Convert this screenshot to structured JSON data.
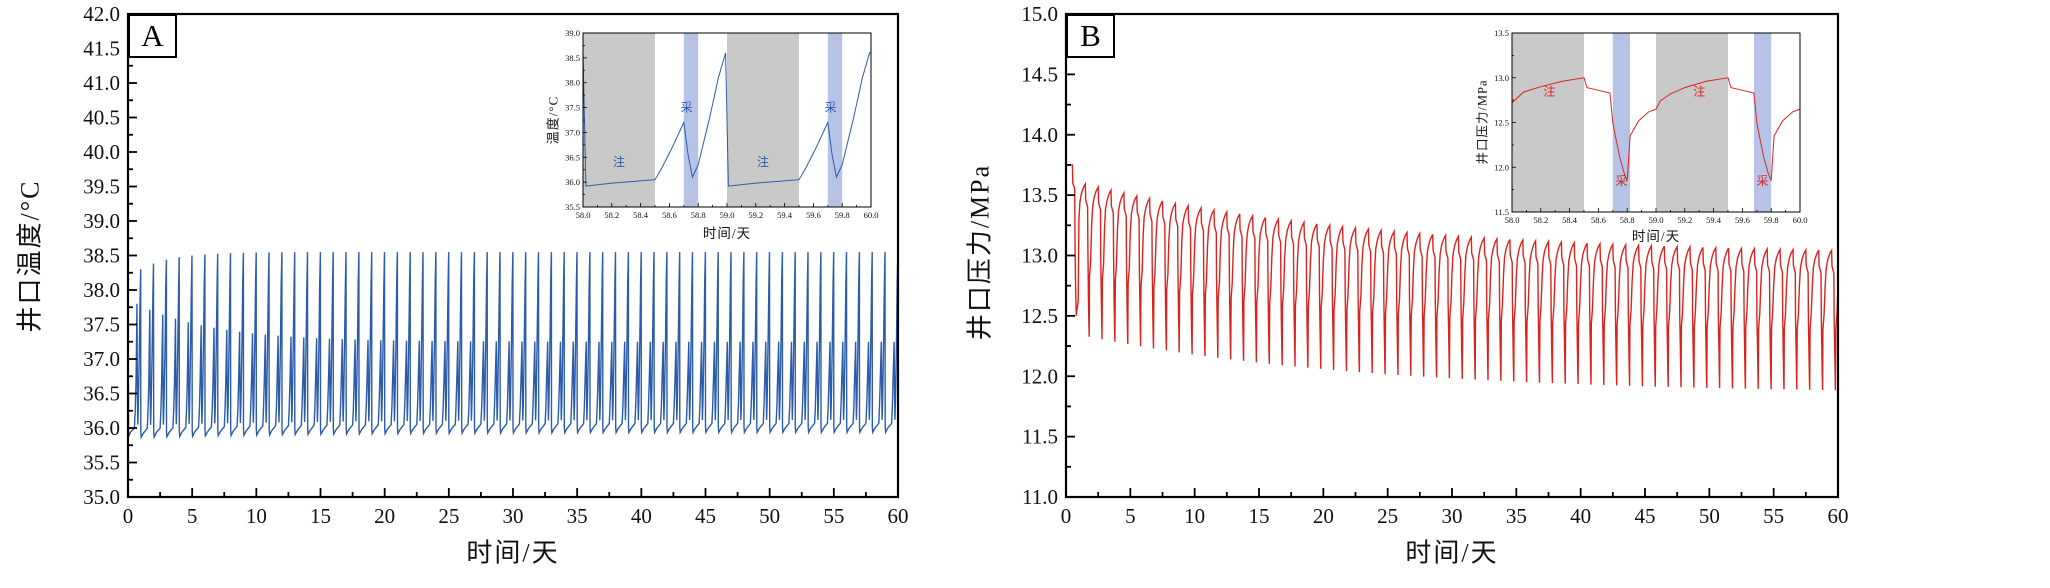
{
  "figure_type": "dual-panel daily injection-production cycle line charts",
  "chart_data": [
    {
      "id": "A",
      "type": "line",
      "panel_label": "A",
      "xlabel": "时间/天",
      "ylabel": "井口温度/°C",
      "xlim": [
        0,
        60
      ],
      "ylim": [
        35.0,
        42.0
      ],
      "xticks": [
        0,
        5,
        10,
        15,
        20,
        25,
        30,
        35,
        40,
        45,
        50,
        55,
        60
      ],
      "yticks": [
        35.0,
        35.5,
        36.0,
        36.5,
        37.0,
        37.5,
        38.0,
        38.5,
        39.0,
        39.5,
        40.0,
        40.5,
        41.0,
        41.5,
        42.0
      ],
      "line_color": "#2b5ba9",
      "description": "Wellhead temperature, one injection-production cycle per day for 60 days; baseline ~36.0, secondary peak ~37.2-37.8, main daily peak ~38.3-38.6",
      "series_model": {
        "cycles": 60,
        "envelopes": {
          "base": {
            "end": 36.02,
            "amp": -0.08,
            "tau": 15
          },
          "sub": {
            "end": 37.25,
            "amp": 0.55,
            "tau": 6
          },
          "peak": {
            "end": 38.55,
            "amp": -0.25,
            "tau": 2.5
          }
        },
        "waveform": [
          [
            0.0,
            "base",
            0
          ],
          [
            0.03,
            "base",
            -0.08
          ],
          [
            0.2,
            "base",
            -0.02
          ],
          [
            0.5,
            "base",
            0.05
          ],
          [
            0.56,
            "base",
            0.3
          ],
          [
            0.62,
            "base",
            0.7
          ],
          [
            0.7,
            "sub",
            0
          ],
          [
            0.73,
            "base",
            0.55
          ],
          [
            0.76,
            "base",
            0.1
          ],
          [
            0.8,
            "base",
            0.35
          ],
          [
            0.88,
            "peak",
            -1.3
          ],
          [
            0.94,
            "peak",
            -0.45
          ],
          [
            0.99,
            "peak",
            0
          ]
        ],
        "day0_override": [
          [
            0.0,
            36.7
          ],
          [
            0.02,
            36.7
          ],
          [
            0.05,
            35.88
          ],
          [
            0.2,
            35.94
          ],
          [
            0.5,
            36.0
          ],
          [
            0.56,
            36.25
          ],
          [
            0.62,
            36.65
          ],
          [
            0.7,
            37.8
          ],
          [
            0.73,
            36.5
          ],
          [
            0.76,
            36.05
          ],
          [
            0.8,
            36.3
          ],
          [
            0.88,
            37.1
          ],
          [
            0.94,
            37.9
          ],
          [
            0.99,
            38.3
          ]
        ],
        "tail": {
          "ref": "base",
          "off": 0
        }
      },
      "inset": {
        "xlabel": "时间/天",
        "ylabel": "温度/°C",
        "xlim": [
          58,
          60
        ],
        "ylim": [
          35.5,
          39.0
        ],
        "xticks": [
          58.0,
          58.2,
          58.4,
          58.6,
          58.8,
          59.0,
          59.2,
          59.4,
          59.6,
          59.8,
          60.0
        ],
        "yticks": [
          35.5,
          36.0,
          36.5,
          37.0,
          37.5,
          38.0,
          38.5,
          39.0
        ],
        "regions": [
          {
            "type": "injection",
            "label": "注",
            "x0": 58.0,
            "x1": 58.5,
            "fill": "#c9c9c9",
            "label_pos": [
              58.25,
              36.32
            ]
          },
          {
            "type": "production",
            "label": "采",
            "x0": 58.7,
            "x1": 58.8,
            "fill": "#b7c3e6",
            "label_pos": [
              58.72,
              37.42
            ]
          },
          {
            "type": "injection",
            "label": "注",
            "x0": 59.0,
            "x1": 59.5,
            "fill": "#c9c9c9",
            "label_pos": [
              59.25,
              36.32
            ]
          },
          {
            "type": "production",
            "label": "采",
            "x0": 59.7,
            "x1": 59.8,
            "fill": "#b7c3e6",
            "label_pos": [
              59.72,
              37.42
            ]
          }
        ],
        "points": [
          [
            58.0,
            38.6
          ],
          [
            58.02,
            35.92
          ],
          [
            58.2,
            35.98
          ],
          [
            58.5,
            36.05
          ],
          [
            58.55,
            36.3
          ],
          [
            58.62,
            36.7
          ],
          [
            58.7,
            37.2
          ],
          [
            58.73,
            36.55
          ],
          [
            58.76,
            36.1
          ],
          [
            58.8,
            36.35
          ],
          [
            58.88,
            37.3
          ],
          [
            58.94,
            38.1
          ],
          [
            58.99,
            38.6
          ],
          [
            59.01,
            35.92
          ],
          [
            59.2,
            35.98
          ],
          [
            59.5,
            36.05
          ],
          [
            59.55,
            36.3
          ],
          [
            59.62,
            36.7
          ],
          [
            59.7,
            37.2
          ],
          [
            59.73,
            36.55
          ],
          [
            59.76,
            36.1
          ],
          [
            59.8,
            36.35
          ],
          [
            59.88,
            37.3
          ],
          [
            59.94,
            38.1
          ],
          [
            59.99,
            38.6
          ],
          [
            60.0,
            38.6
          ]
        ]
      }
    },
    {
      "id": "B",
      "type": "line",
      "panel_label": "B",
      "xlabel": "时间/天",
      "ylabel": "井口压力/MPa",
      "xlim": [
        0,
        60
      ],
      "ylim": [
        11.0,
        15.0
      ],
      "xticks": [
        0,
        5,
        10,
        15,
        20,
        25,
        30,
        35,
        40,
        45,
        50,
        55,
        60
      ],
      "yticks": [
        11.0,
        11.5,
        12.0,
        12.5,
        13.0,
        13.5,
        14.0,
        14.5,
        15.0
      ],
      "line_color": "#d9231f",
      "description": "Wellhead pressure, one injection-production cycle per day for 60 days; initial plateau 13.75 MPa, daily peaks decay 13.6->13.0, daily minima decay 12.4->11.9",
      "series_model": {
        "cycles": 60,
        "envelopes": {
          "peak": {
            "end": 13.0,
            "amp": 0.62,
            "tau": 22
          },
          "valley": {
            "end": 11.85,
            "amp": 0.5,
            "tau": 22
          }
        },
        "waveform": [
          [
            0.0,
            "peak",
            -0.3
          ],
          [
            0.08,
            "peak",
            -0.15
          ],
          [
            0.2,
            "peak",
            -0.08
          ],
          [
            0.35,
            "peak",
            -0.03
          ],
          [
            0.5,
            "peak",
            0
          ],
          [
            0.53,
            "peak",
            -0.13
          ],
          [
            0.68,
            "peak",
            -0.19
          ],
          [
            0.7,
            "peak",
            -0.55
          ],
          [
            0.74,
            "valley",
            0.35
          ],
          [
            0.78,
            "valley",
            0.1
          ],
          [
            0.8,
            "valley",
            0
          ],
          [
            0.83,
            "valley",
            0.5
          ],
          [
            0.92,
            "valley",
            0.63
          ]
        ],
        "day0_override": [
          [
            0.0,
            13.5
          ],
          [
            0.02,
            13.75
          ],
          [
            0.5,
            13.75
          ],
          [
            0.53,
            13.6
          ],
          [
            0.68,
            13.55
          ],
          [
            0.7,
            13.1
          ],
          [
            0.74,
            12.8
          ],
          [
            0.78,
            12.58
          ],
          [
            0.8,
            12.5
          ],
          [
            0.85,
            12.55
          ],
          [
            0.95,
            12.62
          ]
        ],
        "tail": {
          "ref": "peak",
          "off": -0.3
        }
      },
      "inset": {
        "xlabel": "时间/天",
        "ylabel": "井口压力/MPa",
        "xlim": [
          58,
          60
        ],
        "ylim": [
          11.5,
          13.5
        ],
        "xticks": [
          58.0,
          58.2,
          58.4,
          58.6,
          58.8,
          59.0,
          59.2,
          59.4,
          59.6,
          59.8,
          60.0
        ],
        "yticks": [
          11.5,
          12.0,
          12.5,
          13.0,
          13.5
        ],
        "regions": [
          {
            "type": "injection",
            "label": "注",
            "x0": 58.0,
            "x1": 58.5,
            "fill": "#c9c9c9",
            "label_pos": [
              58.26,
              12.8
            ]
          },
          {
            "type": "production",
            "label": "采",
            "x0": 58.7,
            "x1": 58.82,
            "fill": "#b7c3e6",
            "label_pos": [
              58.76,
              11.8
            ]
          },
          {
            "type": "injection",
            "label": "注",
            "x0": 59.0,
            "x1": 59.5,
            "fill": "#c9c9c9",
            "label_pos": [
              59.3,
              12.8
            ]
          },
          {
            "type": "production",
            "label": "采",
            "x0": 59.68,
            "x1": 59.8,
            "fill": "#b7c3e6",
            "label_pos": [
              59.74,
              11.8
            ]
          }
        ],
        "points": [
          [
            58.0,
            12.72
          ],
          [
            58.08,
            12.84
          ],
          [
            58.2,
            12.9
          ],
          [
            58.35,
            12.96
          ],
          [
            58.5,
            13.0
          ],
          [
            58.52,
            12.89
          ],
          [
            58.6,
            12.86
          ],
          [
            58.68,
            12.83
          ],
          [
            58.7,
            12.5
          ],
          [
            58.72,
            12.33
          ],
          [
            58.75,
            12.1
          ],
          [
            58.78,
            11.93
          ],
          [
            58.8,
            11.85
          ],
          [
            58.82,
            12.35
          ],
          [
            58.88,
            12.52
          ],
          [
            58.95,
            12.62
          ],
          [
            59.0,
            12.65
          ],
          [
            59.03,
            12.74
          ],
          [
            59.1,
            12.82
          ],
          [
            59.2,
            12.89
          ],
          [
            59.35,
            12.96
          ],
          [
            59.5,
            13.0
          ],
          [
            59.52,
            12.89
          ],
          [
            59.6,
            12.86
          ],
          [
            59.68,
            12.83
          ],
          [
            59.7,
            12.5
          ],
          [
            59.72,
            12.33
          ],
          [
            59.75,
            12.1
          ],
          [
            59.78,
            11.93
          ],
          [
            59.8,
            11.85
          ],
          [
            59.82,
            12.35
          ],
          [
            59.88,
            12.52
          ],
          [
            59.95,
            12.62
          ],
          [
            60.0,
            12.65
          ]
        ]
      }
    }
  ]
}
